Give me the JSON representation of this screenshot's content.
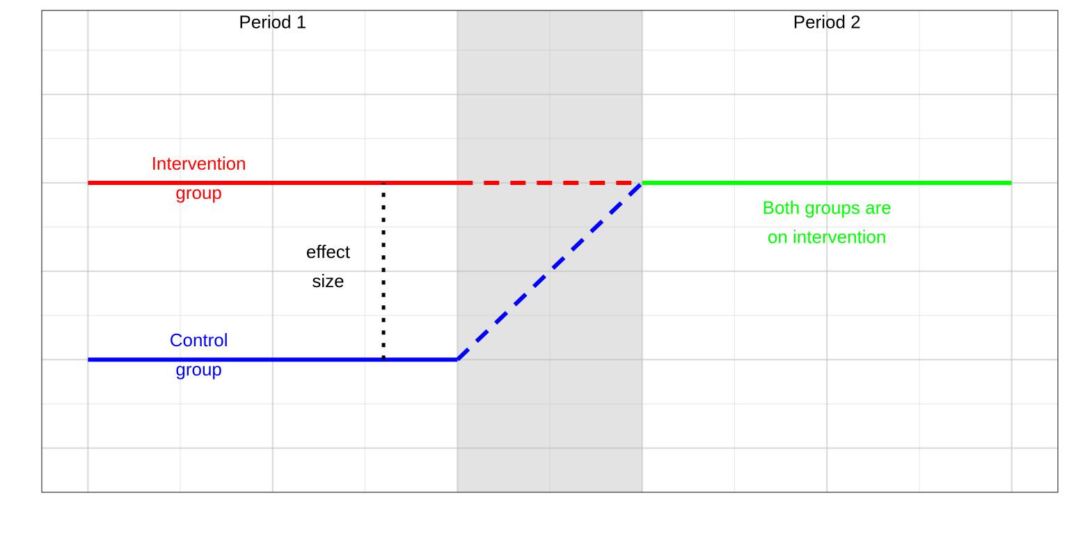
{
  "chart_data": {
    "type": "line",
    "title": "",
    "xlabel": "",
    "ylabel": "",
    "xlim": [
      -0.25,
      5.25
    ],
    "ylim": [
      -0.5,
      4.95
    ],
    "grid": true,
    "shaded_region": {
      "x": [
        2,
        3
      ],
      "color": "#e3e3e3"
    },
    "series": [
      {
        "role": "intervention-solid",
        "color": "#ff0000",
        "style": "solid",
        "x": [
          0,
          2
        ],
        "y": [
          3,
          3
        ]
      },
      {
        "role": "intervention-dashed",
        "color": "#ff0000",
        "style": "dashed",
        "x": [
          2,
          3
        ],
        "y": [
          3,
          3
        ]
      },
      {
        "role": "control-solid",
        "color": "#0000ff",
        "style": "solid",
        "x": [
          0,
          2
        ],
        "y": [
          1,
          1
        ]
      },
      {
        "role": "control-dashed",
        "color": "#0000ff",
        "style": "dashed",
        "x": [
          2,
          3
        ],
        "y": [
          1,
          3
        ]
      },
      {
        "role": "both-on-intervention",
        "color": "#00ff00",
        "style": "solid",
        "x": [
          3,
          5
        ],
        "y": [
          3,
          3
        ]
      },
      {
        "role": "effect-size-marker",
        "color": "#000000",
        "style": "dotted",
        "x": [
          1.6,
          1.6
        ],
        "y": [
          1,
          3
        ]
      }
    ],
    "annotations": [
      {
        "key": "period1",
        "lines": [
          "Period 1"
        ],
        "x": 1,
        "y": 4.75,
        "color": "#000000"
      },
      {
        "key": "period2",
        "lines": [
          "Period 2"
        ],
        "x": 4,
        "y": 4.75,
        "color": "#000000"
      },
      {
        "key": "intervention",
        "lines": [
          "Intervention",
          "group"
        ],
        "x": 0.6,
        "y": 3.15,
        "color": "#ff0000"
      },
      {
        "key": "control",
        "lines": [
          "Control",
          "group"
        ],
        "x": 0.6,
        "y": 1.15,
        "color": "#0000ff"
      },
      {
        "key": "effect",
        "lines": [
          "effect",
          "size"
        ],
        "x": 1.3,
        "y": 2.15,
        "color": "#000000"
      },
      {
        "key": "both",
        "lines": [
          "Both groups are",
          "on intervention"
        ],
        "x": 4,
        "y": 2.65,
        "color": "#00ff00"
      }
    ]
  }
}
